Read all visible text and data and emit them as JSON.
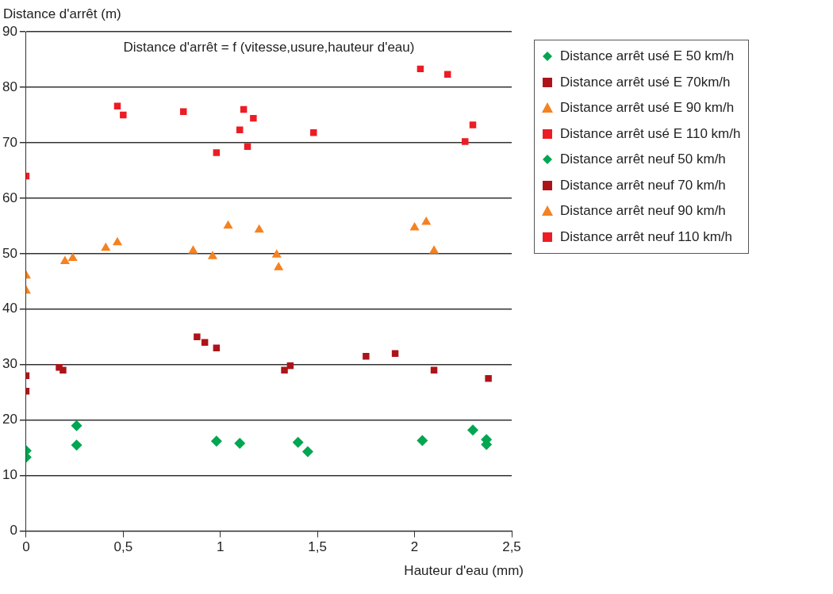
{
  "chart_data": {
    "type": "scatter",
    "title": "Distance d'arrêt = f (vitesse,usure,hauteur d'eau)",
    "xlabel": "Hauteur d'eau (mm)",
    "ylabel": "Distance d'arrêt (m)",
    "xlim": [
      0,
      2.5
    ],
    "xticks": [
      0,
      {
        "value": 0.5,
        "label": "0,5"
      },
      1,
      {
        "value": 1.5,
        "label": "1,5"
      },
      2,
      {
        "value": 2.5,
        "label": "2,5"
      }
    ],
    "ylim": [
      0,
      90
    ],
    "yticks": [
      0,
      10,
      20,
      30,
      40,
      50,
      60,
      70,
      80,
      90
    ],
    "grid": "y",
    "legend": "right",
    "series": [
      {
        "name": "Distance arrêt usé E 50 km/h",
        "color": "#00a651",
        "marker": "diamond",
        "x": [
          0,
          0,
          0.26,
          0.26,
          0.98,
          1.1,
          2.04
        ],
        "values": [
          14.5,
          13.3,
          19,
          15.5,
          16.2,
          15.8,
          16.3
        ]
      },
      {
        "name": "Distance arrêt usé E 70km/h",
        "color": "#ad1419",
        "marker": "square",
        "x": [
          0,
          0.17,
          0.19,
          0.88,
          0.92,
          0.98,
          1.75,
          1.9
        ],
        "values": [
          28,
          29.5,
          29,
          35,
          34,
          33,
          31.5,
          32
        ]
      },
      {
        "name": "Distance arrêt usé E 90 km/h",
        "color": "#f58220",
        "marker": "triangle",
        "x": [
          0,
          0,
          0.41,
          0.47,
          0.86,
          0.96,
          1.04,
          1.2,
          2.0,
          2.06
        ],
        "values": [
          46,
          43.3,
          51,
          52,
          50.5,
          49.5,
          55,
          54.3,
          54.7,
          55.7
        ]
      },
      {
        "name": "Distance arrêt usé E 110 km/h",
        "color": "#ed1c24",
        "marker": "square",
        "x": [
          0,
          0.47,
          0.5,
          0.81,
          0.98,
          1.1,
          1.12,
          1.14,
          1.17
        ],
        "values": [
          64,
          76.6,
          75,
          75.6,
          68.2,
          72.3,
          76,
          69.3,
          74.4
        ]
      },
      {
        "name": "Distance arrêt neuf 50 km/h",
        "color": "#00a651",
        "marker": "diamond",
        "x": [
          1.4,
          1.45,
          2.3,
          2.37,
          2.37
        ],
        "values": [
          16,
          14.3,
          18.2,
          16.5,
          15.6
        ]
      },
      {
        "name": "Distance arrêt neuf 70 km/h",
        "color": "#ad1419",
        "marker": "square",
        "x": [
          0,
          1.33,
          1.36,
          2.1,
          2.38
        ],
        "values": [
          25.2,
          29,
          29.8,
          29,
          27.5
        ]
      },
      {
        "name": "Distance arrêt neuf 90 km/h",
        "color": "#f58220",
        "marker": "triangle",
        "x": [
          0.2,
          0.24,
          1.29,
          1.3,
          2.1
        ],
        "values": [
          48.6,
          49.2,
          49.8,
          47.5,
          50.5
        ]
      },
      {
        "name": "Distance arrêt neuf 110 km/h",
        "color": "#ed1c24",
        "marker": "square",
        "x": [
          1.48,
          2.03,
          2.17,
          2.26,
          2.3
        ],
        "values": [
          71.8,
          83.3,
          82.3,
          70.2,
          73.2
        ]
      }
    ]
  }
}
